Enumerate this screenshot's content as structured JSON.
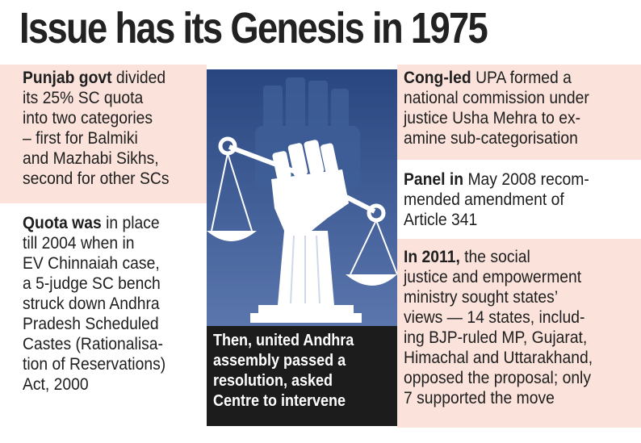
{
  "title": "Issue has its Genesis in 1975",
  "left_top": {
    "bold": "Punjab govt",
    "lines": [
      " divided",
      "its 25% SC quota",
      "into two categories",
      "– first for Balmiki",
      "and Mazhabi Sikhs,",
      "second for other SCs"
    ]
  },
  "left_bottom": {
    "bold": "Quota was",
    "lines": [
      " in place",
      "till 2004 when in",
      "EV Chinnaiah case,",
      "a 5-judge SC bench",
      "struck down Andhra",
      "Pradesh Scheduled",
      "Castes (Rationalisa-",
      "tion of Reservations)",
      "Act, 2000"
    ]
  },
  "caption": {
    "lines": [
      "Then, united Andhra",
      "assembly passed a",
      "resolution, asked",
      "Centre to intervene"
    ]
  },
  "right_top": {
    "bold": "Cong-led",
    "lines": [
      " UPA formed a",
      "national commission under",
      "justice Usha Mehra to ex-",
      "amine sub-categorisation"
    ]
  },
  "right_mid": {
    "bold": "Panel in",
    "lines": [
      " May 2008 recom-",
      "mended amendment of",
      "Article 341"
    ]
  },
  "right_bottom": {
    "bold": "In 2011,",
    "lines": [
      " the social",
      "justice and empowerment",
      "ministry sought states’",
      "views — 14 states, includ-",
      "ing BJP-ruled MP, Gujarat,",
      "Himachal and Uttarakhand,",
      "opposed the proposal; only",
      "7 supported the move"
    ]
  },
  "colors": {
    "pink_panel": "#fbe3dc",
    "illustration_bg": "#2e4d88",
    "caption_bg": "#1c1c1c"
  },
  "icons": [
    "raised-fist-icon",
    "scales-of-justice-icon"
  ]
}
